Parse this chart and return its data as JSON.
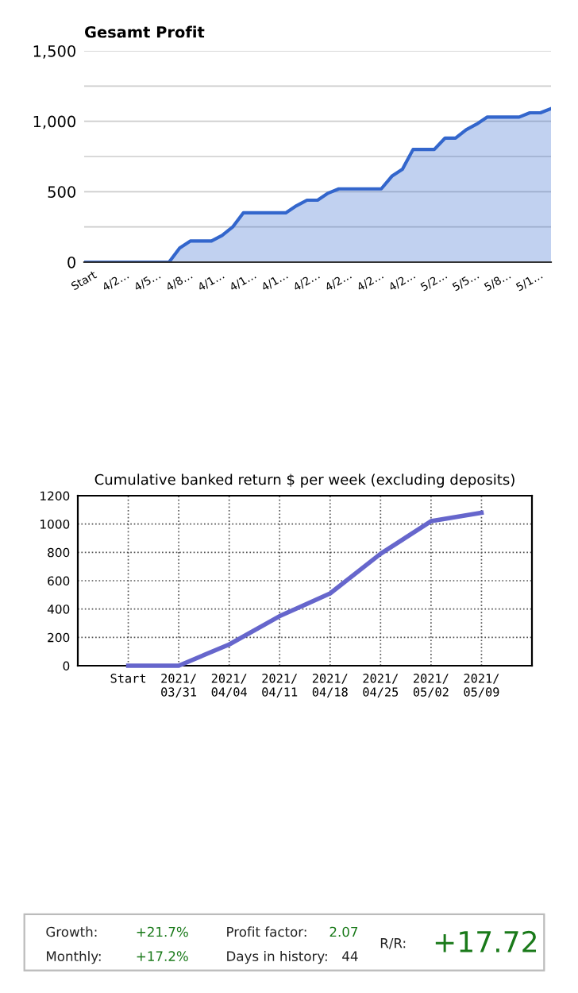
{
  "chart_data": [
    {
      "type": "area",
      "title": "Gesamt Profit",
      "categories": [
        "Start",
        null,
        null,
        "4/2…",
        null,
        null,
        "4/5…",
        null,
        null,
        "4/8…",
        null,
        null,
        "4/1…",
        null,
        null,
        "4/1…",
        null,
        null,
        "4/1…",
        null,
        null,
        "4/2…",
        null,
        null,
        "4/2…",
        null,
        null,
        "4/2…",
        null,
        null,
        "4/2…",
        null,
        null,
        "5/2…",
        null,
        null,
        "5/5…",
        null,
        null,
        "5/8…",
        null,
        null,
        "5/1…",
        null,
        null
      ],
      "series": [
        {
          "color": "#3366cc",
          "values": [
            0,
            0,
            0,
            0,
            0,
            0,
            0,
            0,
            0,
            100,
            150,
            150,
            150,
            190,
            250,
            350,
            350,
            350,
            350,
            350,
            400,
            440,
            440,
            490,
            520,
            520,
            520,
            520,
            520,
            610,
            660,
            800,
            800,
            800,
            880,
            880,
            940,
            980,
            1030,
            1030,
            1030,
            1030,
            1060,
            1060,
            1090
          ]
        }
      ],
      "ylim": [
        0,
        1500
      ],
      "yticks": [
        0,
        {
          "value": 250,
          "label": null
        },
        {
          "value": 500,
          "label": "500"
        },
        {
          "value": 750,
          "label": null
        },
        {
          "value": 1000,
          "label": "1,000"
        },
        {
          "value": 1250,
          "label": null
        },
        {
          "value": 1500,
          "label": "1,500"
        }
      ],
      "grid": "y",
      "legend": false
    },
    {
      "type": "line",
      "title": "Cumulative banked return $ per week (excluding deposits)",
      "categories": [
        "Start",
        "2021/\n03/31",
        "2021/\n04/04",
        "2021/\n04/11",
        "2021/\n04/18",
        "2021/\n04/25",
        "2021/\n05/02",
        "2021/\n05/09"
      ],
      "series": [
        {
          "color": "#6666cc",
          "values": [
            0,
            0,
            150,
            350,
            510,
            790,
            1020,
            1080
          ]
        }
      ],
      "ylim": [
        0,
        1200
      ],
      "yticks": [
        0,
        200,
        400,
        600,
        800,
        1000,
        1200
      ],
      "grid": true,
      "line_style": "solid",
      "marker": "none",
      "legend": false
    },
    {
      "type": "other",
      "annotations": [
        "Growth:",
        "+21.7%",
        "Profit factor:",
        "2.07",
        "Monthly:",
        "+17.2%",
        "Days in history:",
        "44",
        "R/R:",
        "+17.72"
      ]
    }
  ]
}
